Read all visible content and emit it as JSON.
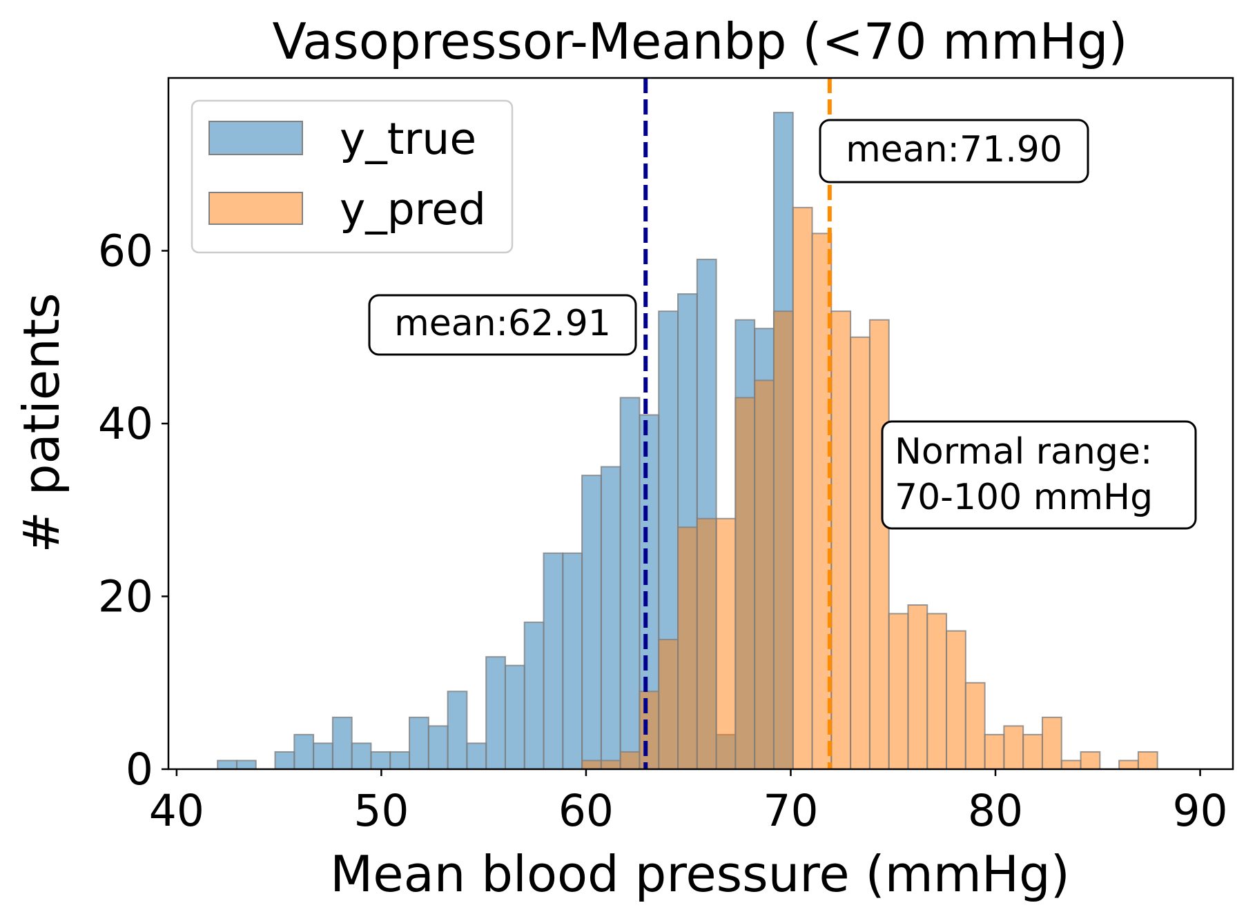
{
  "chart_data": {
    "type": "bar",
    "subtype": "overlapping histogram",
    "title": "Vasopressor-Meanbp (<70 mmHg)",
    "xlabel": "Mean blood pressure (mmHg)",
    "ylabel": "# patients",
    "xlim": [
      39.6,
      91.6
    ],
    "ylim": [
      0,
      80
    ],
    "xticks": [
      40,
      50,
      60,
      70,
      80,
      90
    ],
    "yticks": [
      0,
      20,
      40,
      60
    ],
    "grid": false,
    "legend_position": "top-left",
    "bin_start": 42.0,
    "bin_width": 0.937,
    "series": [
      {
        "name": "y_true",
        "color": "#1f77b4",
        "alpha": 0.5,
        "values": [
          1,
          1,
          0,
          2,
          4,
          3,
          6,
          3,
          2,
          2,
          6,
          5,
          9,
          3,
          13,
          12,
          17,
          25,
          25,
          34,
          35,
          43,
          41,
          53,
          55,
          59,
          4,
          52,
          51,
          76
        ]
      },
      {
        "name": "y_pred",
        "color": "#ff7f0e",
        "alpha": 0.5,
        "bin_offset": 19,
        "values": [
          1,
          1,
          2,
          9,
          15,
          28,
          29,
          29,
          43,
          45,
          53,
          65,
          62,
          53,
          50,
          52,
          18,
          19,
          18,
          16,
          10,
          4,
          5,
          4,
          6,
          1,
          2,
          0,
          1,
          2
        ]
      }
    ],
    "vlines": [
      {
        "name": "y_true mean",
        "x": 62.91,
        "color": "#00008b",
        "style": "dashed"
      },
      {
        "name": "y_pred mean",
        "x": 71.9,
        "color": "#ff8c00",
        "style": "dashed"
      }
    ],
    "annotations": [
      {
        "id": "true_mean",
        "lines": [
          "mean:62.91"
        ]
      },
      {
        "id": "pred_mean",
        "lines": [
          "mean:71.90"
        ]
      },
      {
        "id": "normal_range",
        "lines": [
          "Normal range:",
          "70-100 mmHg"
        ]
      }
    ]
  }
}
